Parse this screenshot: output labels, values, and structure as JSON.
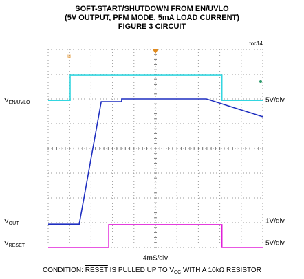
{
  "chart_data": {
    "type": "oscilloscope",
    "title": [
      "SOFT-START/SHUTDOWN FROM EN/UVLO",
      "(5V OUTPUT, PFM MODE, 5mA  LOAD CURRENT)",
      "FIGURE 3 CIRCUIT"
    ],
    "figure_id": "toc14",
    "channels": [
      {
        "label": {
          "main": "V",
          "sub": "EN/UVLO"
        },
        "scale": "5V/div"
      },
      {
        "label": {
          "main": "V",
          "sub": "OUT"
        },
        "scale": "1V/div"
      },
      {
        "label": {
          "main": "V",
          "sub": "RESET",
          "sub_overline": true
        },
        "scale": "5V/div"
      }
    ],
    "time_scale": "4mS/div",
    "condition": [
      {
        "text": "CONDITION: "
      },
      {
        "text": "RESET",
        "overline": true
      },
      {
        "text": " IS PULLED UP TO V"
      },
      {
        "text": "CC",
        "sub": true
      },
      {
        "text": " WITH A 10kΩ RESISTOR"
      }
    ],
    "xlim": [
      0,
      40
    ],
    "ylim": [
      0,
      8
    ],
    "series": [
      {
        "name": "EN/UVLO",
        "color": "#33d6e0",
        "x": [
          0,
          4.1,
          4.1,
          32.4,
          32.4,
          40
        ],
        "values": [
          5.94,
          5.94,
          6.97,
          6.97,
          5.94,
          5.94
        ]
      },
      {
        "name": "OUT",
        "color": "#1f2fc0",
        "x": [
          0,
          5.8,
          9.9,
          13.7,
          13.7,
          29.5,
          40
        ],
        "values": [
          0.94,
          0.94,
          5.89,
          5.89,
          6.0,
          6.0,
          5.28
        ]
      },
      {
        "name": "RESET",
        "color": "#e020d8",
        "x": [
          0,
          11.3,
          11.3,
          32.4,
          32.4,
          40
        ],
        "values": [
          0,
          0,
          0.92,
          0.92,
          0,
          0
        ]
      }
    ]
  }
}
